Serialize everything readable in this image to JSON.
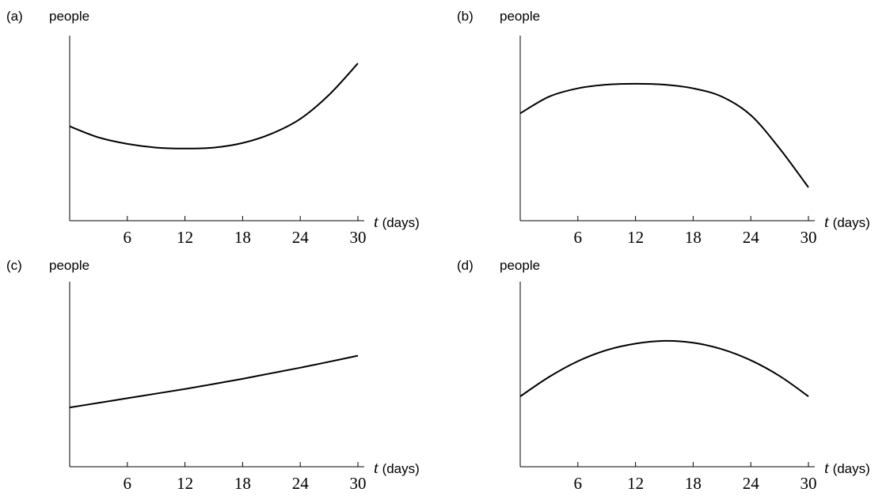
{
  "chart_data": [
    {
      "panel_label": "(a)",
      "type": "line",
      "ylabel": "people",
      "xlabel_var": "t",
      "xlabel_unit": " (days)",
      "xticks": [
        6,
        12,
        18,
        24,
        30
      ],
      "xlim": [
        0,
        30
      ],
      "ylim": [
        0,
        10
      ],
      "x": [
        0,
        3,
        6,
        9,
        12,
        15,
        18,
        21,
        24,
        27,
        30
      ],
      "y": [
        5.1,
        4.5,
        4.15,
        3.95,
        3.9,
        3.95,
        4.2,
        4.7,
        5.5,
        6.8,
        8.5
      ]
    },
    {
      "panel_label": "(b)",
      "type": "line",
      "ylabel": "people",
      "xlabel_var": "t",
      "xlabel_unit": " (days)",
      "xticks": [
        6,
        12,
        18,
        24,
        30
      ],
      "xlim": [
        0,
        30
      ],
      "ylim": [
        0,
        10
      ],
      "x": [
        0,
        3,
        6,
        9,
        12,
        15,
        18,
        21,
        24,
        27,
        30
      ],
      "y": [
        5.8,
        6.7,
        7.15,
        7.35,
        7.4,
        7.35,
        7.15,
        6.7,
        5.7,
        3.9,
        1.8
      ]
    },
    {
      "panel_label": "(c)",
      "type": "line",
      "ylabel": "people",
      "xlabel_var": "t",
      "xlabel_unit": " (days)",
      "xticks": [
        6,
        12,
        18,
        24,
        30
      ],
      "xlim": [
        0,
        30
      ],
      "ylim": [
        0,
        10
      ],
      "x": [
        0,
        3,
        6,
        9,
        12,
        15,
        18,
        21,
        24,
        27,
        30
      ],
      "y": [
        3.2,
        3.45,
        3.7,
        3.95,
        4.2,
        4.47,
        4.75,
        5.05,
        5.35,
        5.67,
        6.0
      ]
    },
    {
      "panel_label": "(d)",
      "type": "line",
      "ylabel": "people",
      "xlabel_var": "t",
      "xlabel_unit": " (days)",
      "xticks": [
        6,
        12,
        18,
        24,
        30
      ],
      "xlim": [
        0,
        30
      ],
      "ylim": [
        0,
        10
      ],
      "x": [
        0,
        3,
        6,
        9,
        12,
        15,
        18,
        21,
        24,
        27,
        30
      ],
      "y": [
        3.8,
        4.85,
        5.7,
        6.3,
        6.65,
        6.8,
        6.7,
        6.35,
        5.75,
        4.9,
        3.8
      ]
    }
  ]
}
